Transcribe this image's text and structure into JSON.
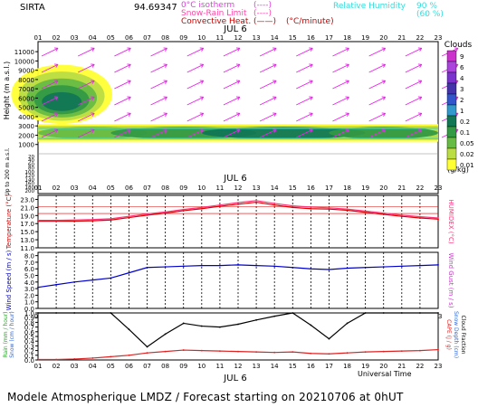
{
  "header": {
    "station": "SIRTA",
    "coords": "94.69347",
    "legend_left": [
      {
        "label": "0°C isotherm",
        "symbol": "(----)",
        "color": "#e040e0"
      },
      {
        "label": "Snow-Rain Limit",
        "symbol": "(----)",
        "color": "#ff44aa"
      },
      {
        "label": "Convective Heat.",
        "symbol": "(——)",
        "unit": "(°C/minute)",
        "color": "#cc0000"
      }
    ],
    "legend_right": [
      {
        "label": "Relative Humidity",
        "value": "90 %",
        "color": "#33dddd"
      },
      {
        "value": "(60 %)",
        "color": "#33dddd"
      }
    ]
  },
  "time_axis": {
    "hours": [
      "01",
      "02",
      "03",
      "04",
      "05",
      "06",
      "07",
      "08",
      "09",
      "10",
      "11",
      "12",
      "13",
      "14",
      "15",
      "16",
      "17",
      "18",
      "19",
      "20",
      "21",
      "22",
      "23"
    ],
    "date_label": "JUL 6",
    "bottom_label": "Universal Time"
  },
  "colorbar": {
    "title": "Clouds",
    "unit": "(g/kg)",
    "labels": [
      "9",
      "6",
      "4",
      "3",
      "2",
      "1",
      "0.2",
      "0.1",
      "0.05",
      "0.02",
      "0.01"
    ],
    "colors": [
      "#cc33cc",
      "#aa44dd",
      "#7a33cc",
      "#4433aa",
      "#3355cc",
      "#3399cc",
      "#117755",
      "#339944",
      "#66bb44",
      "#bbdd44",
      "#ffff33"
    ]
  },
  "chart_data": [
    {
      "type": "heatmap",
      "title": "Clouds",
      "ylabel": "Height (m a.s.l.)",
      "ylabel2": "Up to 200 m a.s.l.",
      "yticks_upper": [
        "11000",
        "10000",
        "9000",
        "8000",
        "7000",
        "6000",
        "5000",
        "4000",
        "3000",
        "2000",
        "1000"
      ],
      "yticks_lower": [
        "200",
        "180",
        "160",
        "140",
        "120",
        "100",
        "80",
        "60",
        "40",
        "20"
      ],
      "ylim": [
        0,
        11500
      ],
      "cloud_layers": [
        {
          "name": "high cloud",
          "x_range": [
            1,
            5
          ],
          "y_range": [
            3500,
            9300
          ],
          "max_class": "1"
        },
        {
          "name": "low cloud",
          "x_range": [
            1,
            23
          ],
          "y_range": [
            1500,
            3000
          ],
          "max_class": "1"
        }
      ]
    },
    {
      "type": "line",
      "title": "",
      "ylabel": "Temperature (°C)",
      "ylabel2": "HUMIDEX (°C)",
      "yticks": [
        "23.0",
        "21.0",
        "19.0",
        "17.0",
        "15.0",
        "13.0",
        "11.0"
      ],
      "ylim": [
        11,
        24
      ],
      "hours": [
        1,
        2,
        3,
        4,
        5,
        6,
        7,
        8,
        9,
        10,
        11,
        12,
        13,
        14,
        15,
        16,
        17,
        18,
        19,
        20,
        21,
        22,
        23
      ],
      "series": [
        {
          "name": "Temperature",
          "color": "#dd0000",
          "values": [
            17.6,
            17.6,
            17.6,
            17.7,
            17.9,
            18.5,
            19.1,
            19.6,
            20.2,
            20.7,
            21.3,
            21.8,
            22.3,
            21.6,
            21.0,
            20.7,
            20.6,
            20.3,
            19.8,
            19.3,
            18.8,
            18.4,
            18.1
          ]
        },
        {
          "name": "HUMIDEX",
          "color": "#ff3377",
          "values": [
            17.8,
            17.8,
            17.9,
            18.0,
            18.2,
            18.8,
            19.4,
            19.9,
            20.5,
            21.0,
            21.6,
            22.2,
            22.7,
            22.0,
            21.4,
            21.1,
            20.9,
            20.6,
            20.1,
            19.6,
            19.1,
            18.7,
            18.4
          ]
        }
      ]
    },
    {
      "type": "line",
      "title": "",
      "ylabel": "Wind Speed (m / s)",
      "ylabel2": "Wind Gust (m / s)",
      "yticks": [
        "8.0",
        "7.0",
        "6.0",
        "5.0",
        "4.0",
        "3.0",
        "2.0",
        "1.0",
        "0.0"
      ],
      "ylim": [
        0,
        8.5
      ],
      "hours": [
        1,
        2,
        3,
        4,
        5,
        6,
        7,
        8,
        9,
        10,
        11,
        12,
        13,
        14,
        15,
        16,
        17,
        18,
        19,
        20,
        21,
        22,
        23
      ],
      "series": [
        {
          "name": "Wind Speed",
          "color": "#0000cc",
          "values": [
            3.2,
            3.6,
            4.0,
            4.3,
            4.6,
            5.4,
            6.2,
            6.3,
            6.4,
            6.5,
            6.5,
            6.6,
            6.5,
            6.4,
            6.2,
            6.0,
            5.9,
            6.1,
            6.2,
            6.3,
            6.4,
            6.5,
            6.6
          ]
        }
      ]
    },
    {
      "type": "line",
      "title": "",
      "ylabel": "Rain (mm / hour)",
      "ylabel_b": "Snow (cm / hour)",
      "ylabel2": "CAPE (J / g)",
      "ylabel2_b": "Snow Depth (cm)",
      "ylabel2_c": "Cloud Fraction",
      "yticks": [
        "1.0",
        "0.9",
        "0.8",
        "0.7",
        "0.6",
        "0.5",
        "0.4",
        "0.3",
        "0.2",
        "0.1",
        "0.0"
      ],
      "ylim": [
        0,
        1.0
      ],
      "hours": [
        1,
        2,
        3,
        4,
        5,
        6,
        7,
        8,
        9,
        10,
        11,
        12,
        13,
        14,
        15,
        16,
        17,
        18,
        19,
        20,
        21,
        22,
        23
      ],
      "series": [
        {
          "name": "Cloud Fraction",
          "color": "#000000",
          "values": [
            1.0,
            1.0,
            1.0,
            1.0,
            1.0,
            0.65,
            0.28,
            0.55,
            0.78,
            0.72,
            0.7,
            0.76,
            0.85,
            0.93,
            1.0,
            0.74,
            0.45,
            0.78,
            1.0,
            1.0,
            1.0,
            1.0,
            1.0
          ]
        },
        {
          "name": "CAPE",
          "color": "#dd2222",
          "values": [
            0.01,
            0.01,
            0.02,
            0.04,
            0.07,
            0.1,
            0.15,
            0.18,
            0.21,
            0.2,
            0.19,
            0.18,
            0.17,
            0.16,
            0.17,
            0.14,
            0.13,
            0.15,
            0.17,
            0.18,
            0.19,
            0.2,
            0.22
          ]
        }
      ]
    }
  ],
  "footer": {
    "text": "Modele Atmospherique LMDZ / Forecast starting on 20210706 at 0hUT"
  }
}
